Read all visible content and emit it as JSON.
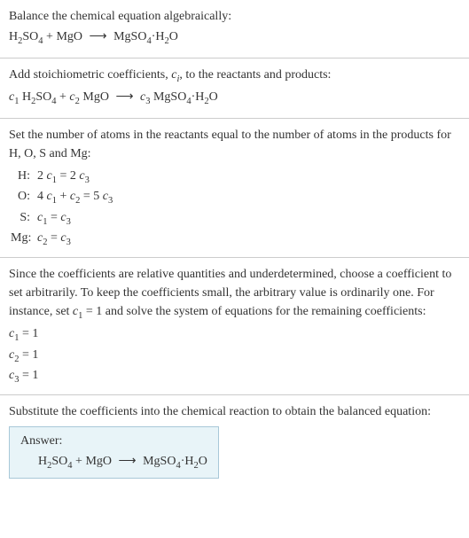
{
  "colors": {
    "text": "#333333",
    "background": "#ffffff",
    "divider": "#cccccc",
    "answer_bg": "#e8f4f8",
    "answer_border": "#a8c8d8"
  },
  "typography": {
    "body_font": "Georgia, 'Times New Roman', serif",
    "body_size": 14
  },
  "section1": {
    "line1": "Balance the chemical equation algebraically:",
    "equation_reactant1": "H",
    "equation_reactant1_sub1": "2",
    "equation_reactant1_cont": "SO",
    "equation_reactant1_sub2": "4",
    "plus": " + ",
    "equation_reactant2": "MgO",
    "arrow": "⟶",
    "equation_product1": "MgSO",
    "equation_product1_sub": "4",
    "equation_product1_dot": "·H",
    "equation_product1_sub2": "2",
    "equation_product1_end": "O"
  },
  "section2": {
    "line1_a": "Add stoichiometric coefficients, ",
    "line1_ci": "c",
    "line1_ci_sub": "i",
    "line1_b": ", to the reactants and products:",
    "eq_c1": "c",
    "eq_c1_sub": "1",
    "eq_r1a": " H",
    "eq_r1_sub1": "2",
    "eq_r1b": "SO",
    "eq_r1_sub2": "4",
    "eq_plus": " + ",
    "eq_c2": "c",
    "eq_c2_sub": "2",
    "eq_r2": " MgO",
    "arrow": "⟶",
    "eq_c3": "c",
    "eq_c3_sub": "3",
    "eq_p1a": " MgSO",
    "eq_p1_sub": "4",
    "eq_p1b": "·H",
    "eq_p1_sub2": "2",
    "eq_p1c": "O"
  },
  "section3": {
    "intro": "Set the number of atoms in the reactants equal to the number of atoms in the products for H, O, S and Mg:",
    "rows": [
      {
        "label": "H:",
        "eq_a": "2 ",
        "c1": "c",
        "c1_sub": "1",
        "eq_b": " = 2 ",
        "c2": "c",
        "c2_sub": "3"
      },
      {
        "label": "O:",
        "eq_a": "4 ",
        "c1": "c",
        "c1_sub": "1",
        "eq_b": " + ",
        "c2": "c",
        "c2_sub": "2",
        "eq_c": " = 5 ",
        "c3": "c",
        "c3_sub": "3"
      },
      {
        "label": "S:",
        "eq_a": "",
        "c1": "c",
        "c1_sub": "1",
        "eq_b": " = ",
        "c2": "c",
        "c2_sub": "3"
      },
      {
        "label": "Mg:",
        "eq_a": "",
        "c1": "c",
        "c1_sub": "2",
        "eq_b": " = ",
        "c2": "c",
        "c2_sub": "3"
      }
    ]
  },
  "section4": {
    "intro_a": "Since the coefficients are relative quantities and underdetermined, choose a coefficient to set arbitrarily. To keep the coefficients small, the arbitrary value is ordinarily one. For instance, set ",
    "intro_c1": "c",
    "intro_c1_sub": "1",
    "intro_b": " = 1 and solve the system of equations for the remaining coefficients:",
    "results": [
      {
        "c": "c",
        "sub": "1",
        "eq": " = 1"
      },
      {
        "c": "c",
        "sub": "2",
        "eq": " = 1"
      },
      {
        "c": "c",
        "sub": "3",
        "eq": " = 1"
      }
    ]
  },
  "section5": {
    "intro": "Substitute the coefficients into the chemical reaction to obtain the balanced equation:",
    "answer_label": "Answer:",
    "eq_r1a": "H",
    "eq_r1_sub1": "2",
    "eq_r1b": "SO",
    "eq_r1_sub2": "4",
    "plus": " + ",
    "eq_r2": "MgO",
    "arrow": "⟶",
    "eq_p1a": "MgSO",
    "eq_p1_sub": "4",
    "eq_p1b": "·H",
    "eq_p1_sub2": "2",
    "eq_p1c": "O"
  }
}
